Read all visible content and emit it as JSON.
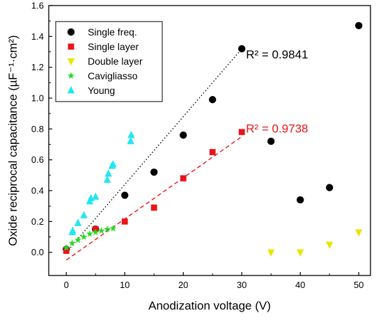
{
  "chart_data": {
    "type": "scatter",
    "xlabel": "Anodization voltage (V)",
    "ylabel": "Oxide reciprocal capacitance (µF⁻¹·cm²)",
    "xlim": [
      -3,
      52
    ],
    "ylim": [
      -0.15,
      1.6
    ],
    "xticks": [
      0,
      10,
      20,
      30,
      40,
      50
    ],
    "yticks": [
      0.0,
      0.2,
      0.4,
      0.6,
      0.8,
      1.0,
      1.2,
      1.4,
      1.6
    ],
    "ytick_labels": [
      "0.0",
      "0.2",
      "0.4",
      "0.6",
      "0.8",
      "1.0",
      "1.2",
      "1.4",
      "1.6"
    ],
    "legend_position": "top-left",
    "series": [
      {
        "name": "Single freq.",
        "marker": "circle",
        "color": "#000000",
        "x": [
          0,
          5,
          10,
          15,
          20,
          25,
          30,
          35,
          40,
          45,
          50
        ],
        "y": [
          0.02,
          0.15,
          0.37,
          0.52,
          0.76,
          0.99,
          1.32,
          0.72,
          0.34,
          0.42,
          1.47
        ]
      },
      {
        "name": "Single layer",
        "marker": "square",
        "color": "#e8151a",
        "x": [
          0,
          5,
          10,
          15,
          20,
          25,
          30
        ],
        "y": [
          0.01,
          0.15,
          0.2,
          0.29,
          0.48,
          0.65,
          0.78
        ]
      },
      {
        "name": "Double layer",
        "marker": "triangle-down",
        "color": "#e8e600",
        "x": [
          35,
          40,
          45,
          50
        ],
        "y": [
          0.0,
          0.0,
          0.05,
          0.13
        ]
      },
      {
        "name": "Cavigliasso",
        "marker": "star",
        "color": "#22dd22",
        "x": [
          0,
          1,
          2,
          3,
          4,
          5,
          6,
          7,
          8
        ],
        "y": [
          0.03,
          0.06,
          0.08,
          0.1,
          0.12,
          0.13,
          0.14,
          0.15,
          0.155
        ]
      },
      {
        "name": "Young",
        "marker": "triangle-up",
        "color": "#22e6f2",
        "x": [
          1,
          1.1,
          2,
          3,
          4,
          4.2,
          5,
          7,
          7.2,
          7.8,
          8,
          11,
          11.1
        ],
        "y": [
          0.13,
          0.14,
          0.19,
          0.24,
          0.33,
          0.35,
          0.36,
          0.47,
          0.51,
          0.56,
          0.57,
          0.72,
          0.76
        ]
      }
    ],
    "fits": [
      {
        "series": "Single freq.",
        "style": "dotted",
        "color": "#000000",
        "x": [
          0,
          30
        ],
        "y": [
          0.0,
          1.32
        ],
        "label": "R² = 0.9841"
      },
      {
        "series": "Single layer",
        "style": "dashed",
        "color": "#e8151a",
        "x": [
          0,
          30
        ],
        "y": [
          -0.05,
          0.75
        ],
        "label": "R² = 0.9738"
      }
    ]
  }
}
